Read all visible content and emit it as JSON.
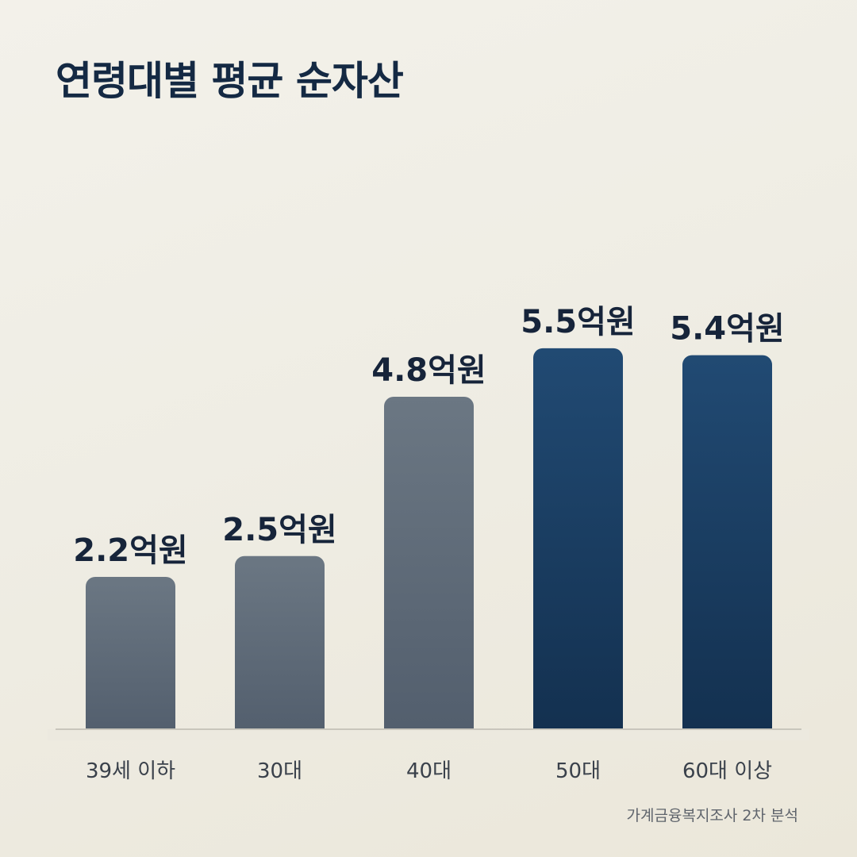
{
  "title": "연령대별 평균 순자산",
  "source": "가계금융복지조사 2차 분석",
  "colors": {
    "background": "#efede4",
    "title": "#142943",
    "muted_bar_top": "#6b7783",
    "muted_bar_bottom": "#525e6d",
    "accent_bar_top": "#214a73",
    "accent_bar_bottom": "#13304f",
    "axis_line": "#c9c6bc",
    "value_label": "#16243a",
    "category_label": "#3a414b"
  },
  "chart_data": {
    "type": "bar",
    "title": "연령대별 평균 순자산",
    "categories": [
      "39세 이하",
      "30대",
      "40대",
      "50대",
      "60대 이상"
    ],
    "values": [
      2.2,
      2.5,
      4.8,
      5.5,
      5.4
    ],
    "value_labels": [
      "2.2억원",
      "2.5억원",
      "4.8억원",
      "5.5억원",
      "5.4억원"
    ],
    "highlighted": [
      false,
      false,
      false,
      true,
      true
    ],
    "xlabel": "",
    "ylabel": "",
    "grid": false,
    "legend": "none"
  }
}
